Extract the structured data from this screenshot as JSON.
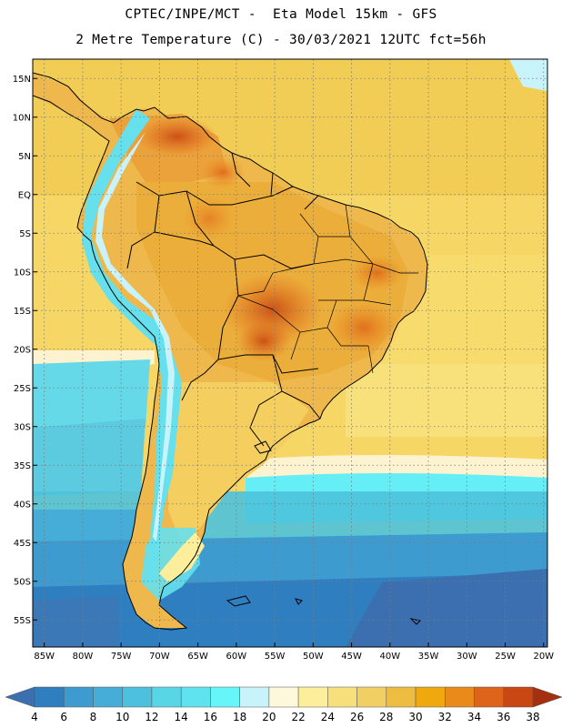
{
  "title_line1": "CPTEC/INPE/MCT -  Eta Model 15km - GFS",
  "title_line2": "2 Metre Temperature (C) - 30/03/2021 12UTC fct=56h",
  "map": {
    "lat_labels": [
      "15N",
      "10N",
      "5N",
      "EQ",
      "5S",
      "10S",
      "15S",
      "20S",
      "25S",
      "30S",
      "35S",
      "40S",
      "45S",
      "50S",
      "55S"
    ],
    "lat_values": [
      15,
      10,
      5,
      0,
      -5,
      -10,
      -15,
      -20,
      -25,
      -30,
      -35,
      -40,
      -45,
      -50,
      -55
    ],
    "lon_labels": [
      "85W",
      "80W",
      "75W",
      "70W",
      "65W",
      "60W",
      "55W",
      "50W",
      "45W",
      "40W",
      "35W",
      "30W",
      "25W",
      "20W"
    ],
    "lon_values": [
      -85,
      -80,
      -75,
      -70,
      -65,
      -60,
      -55,
      -50,
      -45,
      -40,
      -35,
      -30,
      -25,
      -20
    ],
    "extent": {
      "lon_min": -86.5,
      "lon_max": -19.5,
      "lat_min": -58.5,
      "lat_max": 17.5
    }
  },
  "colorbar": {
    "labels": [
      "4",
      "6",
      "8",
      "10",
      "12",
      "14",
      "16",
      "18",
      "20",
      "22",
      "24",
      "26",
      "28",
      "30",
      "32",
      "34",
      "36",
      "38"
    ],
    "colors": [
      "#3b6fb0",
      "#2f7fc0",
      "#3e9bd0",
      "#46acd8",
      "#4dc0dd",
      "#58d6e6",
      "#5fe3ee",
      "#66f6fa",
      "#c9f3fb",
      "#fdf7dc",
      "#fcee9b",
      "#f6e07c",
      "#f1cf63",
      "#ecbd40",
      "#efa80d",
      "#ea8a1a",
      "#de641b",
      "#c84712",
      "#a43010"
    ]
  }
}
